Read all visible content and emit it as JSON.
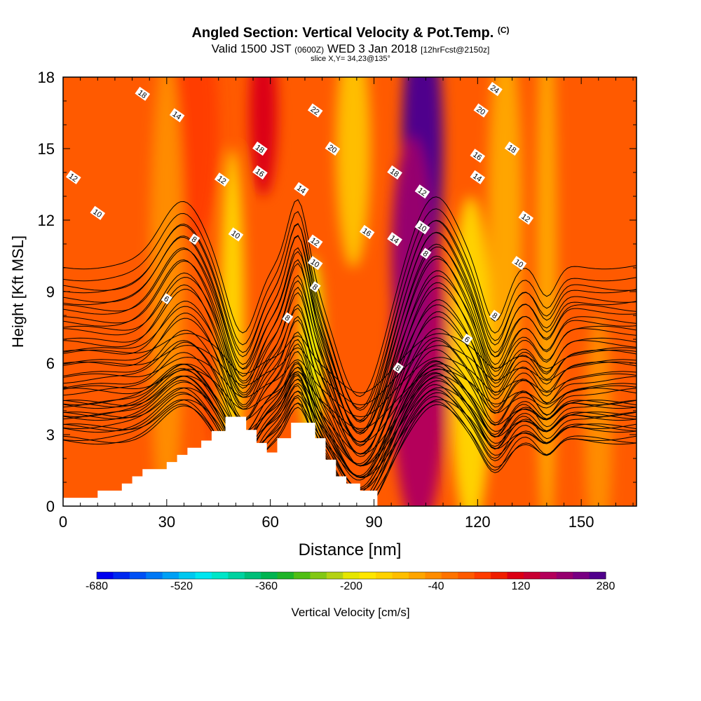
{
  "title": {
    "main": "Angled Section: Vertical Velocity & Pot.Temp.",
    "copyright": "(C)",
    "valid_prefix": "Valid 1500 JST",
    "utc_time": "(0600Z)",
    "valid_date": "WED 3 Jan 2018",
    "forecast": "[12hrFcst@2150z]",
    "slice": "slice X,Y= 34,23@135°"
  },
  "chart_data": {
    "type": "heatmap",
    "xlabel": "Distance [nm]",
    "ylabel": "Height [Kft MSL]",
    "xlim": [
      0,
      166
    ],
    "ylim": [
      0,
      18
    ],
    "x_ticks": [
      0,
      30,
      60,
      90,
      120,
      150
    ],
    "y_ticks": [
      0,
      3,
      6,
      9,
      12,
      15,
      18
    ],
    "fill_variable": "Vertical Velocity [cm/s]",
    "contour_variable": "Potential Temperature",
    "colorbar": {
      "label": "Vertical Velocity [cm/s]",
      "tick_labels": [
        -680,
        -520,
        -360,
        -200,
        -40,
        120,
        280
      ],
      "colors": [
        "#0000f0",
        "#0028f0",
        "#0050f5",
        "#0078f5",
        "#00a0f5",
        "#00c8f0",
        "#00e6f0",
        "#00e6c8",
        "#00d2a0",
        "#00be78",
        "#00b450",
        "#1eb428",
        "#50be14",
        "#82c814",
        "#b4d214",
        "#e6e600",
        "#ffe600",
        "#ffd200",
        "#ffbe00",
        "#ffa500",
        "#ff8c00",
        "#ff7300",
        "#ff5a00",
        "#ff3c00",
        "#f01e00",
        "#dc0014",
        "#c80032",
        "#b4005a",
        "#96006e",
        "#780082",
        "#50008c"
      ]
    },
    "terrain": {
      "x": [
        0,
        10,
        10,
        17,
        17,
        20,
        20,
        23,
        23,
        30,
        30,
        33,
        33,
        36,
        36,
        40,
        40,
        43,
        43,
        47,
        47,
        53,
        53,
        56,
        56,
        59,
        59,
        62,
        62,
        66,
        66,
        73,
        73,
        76,
        76,
        79,
        79,
        82,
        82,
        86,
        86,
        91,
        91
      ],
      "height": [
        0.35,
        0.35,
        0.65,
        0.65,
        0.95,
        0.95,
        1.25,
        1.25,
        1.55,
        1.55,
        1.85,
        1.85,
        2.15,
        2.15,
        2.45,
        2.45,
        2.75,
        2.75,
        3.15,
        3.15,
        3.75,
        3.75,
        3.2,
        3.2,
        2.65,
        2.65,
        2.25,
        2.25,
        2.85,
        2.85,
        3.5,
        3.5,
        2.85,
        2.85,
        1.95,
        1.95,
        1.25,
        1.25,
        0.95,
        0.95,
        0.65,
        0.65,
        0.35
      ]
    },
    "velocity_features": [
      {
        "x": 103,
        "z": 6,
        "width": 8,
        "height": 7,
        "value": 160
      },
      {
        "x": 104,
        "z": 15,
        "width": 6,
        "height": 6,
        "value": 260
      },
      {
        "x": 101,
        "z": 10.5,
        "width": 6,
        "height": 5,
        "value": 210
      },
      {
        "x": 58,
        "z": 16.5,
        "width": 4,
        "height": 3.5,
        "value": 110
      },
      {
        "x": 38,
        "z": 16,
        "width": 7,
        "height": 5,
        "value": 40
      },
      {
        "x": 45,
        "z": 5,
        "width": 2,
        "height": 2.5,
        "value": 90
      },
      {
        "x": 72,
        "z": 6.5,
        "width": 3.5,
        "height": 4,
        "value": -190
      },
      {
        "x": 49,
        "z": 8,
        "width": 3.5,
        "height": 7,
        "value": -140
      },
      {
        "x": 118,
        "z": 6,
        "width": 6,
        "height": 7,
        "value": -150
      },
      {
        "x": 84,
        "z": 15,
        "width": 5,
        "height": 5,
        "value": -120
      },
      {
        "x": 128,
        "z": 12,
        "width": 5,
        "height": 8,
        "value": -80
      },
      {
        "x": 140,
        "z": 10,
        "width": 3,
        "height": 12,
        "value": -70
      },
      {
        "x": 30,
        "z": 9,
        "width": 5,
        "height": 10,
        "value": -60
      },
      {
        "x": 155,
        "z": 3,
        "width": 4,
        "height": 5,
        "value": -60
      }
    ],
    "theta_contours": {
      "levels": [
        4,
        6,
        8,
        10,
        12,
        14,
        16,
        18,
        20,
        22,
        24
      ],
      "base_height": [
        4.9,
        3.3,
        2.8,
        2.75,
        2.9,
        3.8,
        5.0,
        5.9,
        6.8,
        7.7,
        8.6
      ],
      "level_spacing_kft": 0.5,
      "troughs": [
        {
          "x": 52,
          "depth": 1.6,
          "width": 6
        },
        {
          "x": 86,
          "depth": 3.0,
          "width": 10
        },
        {
          "x": 125,
          "depth": 1.3,
          "width": 5
        },
        {
          "x": 140,
          "depth": 0.8,
          "width": 4
        }
      ],
      "ridges": [
        {
          "x": 35,
          "height": 1.5,
          "width": 9
        },
        {
          "x": 68,
          "height": 1.6,
          "width": 4
        },
        {
          "x": 108,
          "height": 1.6,
          "width": 9
        }
      ],
      "labels": [
        {
          "text": "18",
          "x": 23,
          "z": 17.3
        },
        {
          "text": "14",
          "x": 33,
          "z": 16.4
        },
        {
          "text": "12",
          "x": 3,
          "z": 13.8
        },
        {
          "text": "10",
          "x": 10,
          "z": 12.3
        },
        {
          "text": "8",
          "x": 38,
          "z": 11.2
        },
        {
          "text": "6",
          "x": 30,
          "z": 8.7
        },
        {
          "text": "12",
          "x": 46,
          "z": 13.7
        },
        {
          "text": "10",
          "x": 50,
          "z": 11.4
        },
        {
          "text": "18",
          "x": 57,
          "z": 15.0
        },
        {
          "text": "16",
          "x": 57,
          "z": 14.0
        },
        {
          "text": "8",
          "x": 65,
          "z": 7.9
        },
        {
          "text": "22",
          "x": 73,
          "z": 16.6
        },
        {
          "text": "20",
          "x": 78,
          "z": 15.0
        },
        {
          "text": "14",
          "x": 69,
          "z": 13.3
        },
        {
          "text": "12",
          "x": 73,
          "z": 11.1
        },
        {
          "text": "10",
          "x": 73,
          "z": 10.2
        },
        {
          "text": "8",
          "x": 73,
          "z": 9.2
        },
        {
          "text": "16",
          "x": 88,
          "z": 11.5
        },
        {
          "text": "14",
          "x": 96,
          "z": 11.2
        },
        {
          "text": "18",
          "x": 96,
          "z": 14.0
        },
        {
          "text": "12",
          "x": 104,
          "z": 13.2
        },
        {
          "text": "10",
          "x": 104,
          "z": 11.7
        },
        {
          "text": "8",
          "x": 105,
          "z": 10.6
        },
        {
          "text": "8",
          "x": 97,
          "z": 5.8
        },
        {
          "text": "24",
          "x": 125,
          "z": 17.5
        },
        {
          "text": "20",
          "x": 121,
          "z": 16.6
        },
        {
          "text": "18",
          "x": 130,
          "z": 15.0
        },
        {
          "text": "16",
          "x": 120,
          "z": 14.7
        },
        {
          "text": "14",
          "x": 120,
          "z": 13.8
        },
        {
          "text": "12",
          "x": 134,
          "z": 12.1
        },
        {
          "text": "10",
          "x": 132,
          "z": 10.2
        },
        {
          "text": "8",
          "x": 125,
          "z": 8.0
        },
        {
          "text": "6",
          "x": 117,
          "z": 7.0
        }
      ]
    }
  }
}
